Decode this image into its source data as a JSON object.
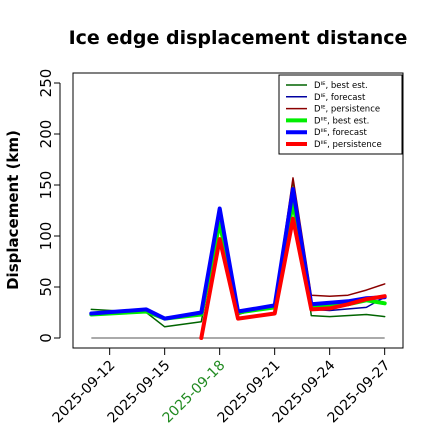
{
  "chart_data": {
    "type": "line",
    "title": "Ice edge displacement distance",
    "ylabel": "Displacement (km)",
    "xlabel": "",
    "ylim": [
      0,
      260
    ],
    "yticks": [
      0,
      50,
      100,
      150,
      200,
      250
    ],
    "xlim": [
      "2025-09-10",
      "2025-09-28"
    ],
    "xticks": [
      {
        "date": "2025-09-12",
        "label": "2025-09-12",
        "color": "#000000"
      },
      {
        "date": "2025-09-15",
        "label": "2025-09-15",
        "color": "#000000"
      },
      {
        "date": "2025-09-18",
        "label": "2025-09-18",
        "color": "#228B22"
      },
      {
        "date": "2025-09-21",
        "label": "2025-09-21",
        "color": "#000000"
      },
      {
        "date": "2025-09-24",
        "label": "2025-09-24",
        "color": "#000000"
      },
      {
        "date": "2025-09-27",
        "label": "2025-09-27",
        "color": "#000000"
      }
    ],
    "legend_position": "top-right",
    "reference_line": {
      "start": "2025-09-11",
      "end": "2025-09-27",
      "y": 0,
      "color": "#555555"
    },
    "series": [
      {
        "name": "Dᴵᴱ, best est.",
        "color": "#006400",
        "width": 1.5,
        "points": [
          [
            "2025-09-11",
            28
          ],
          [
            "2025-09-14",
            25
          ],
          [
            "2025-09-15",
            11
          ],
          [
            "2025-09-17",
            16
          ],
          [
            "2025-09-18",
            110
          ],
          [
            "2025-09-19",
            25
          ],
          [
            "2025-09-21",
            30
          ],
          [
            "2025-09-22",
            155
          ],
          [
            "2025-09-23",
            22
          ],
          [
            "2025-09-24",
            21
          ],
          [
            "2025-09-26",
            23
          ],
          [
            "2025-09-27",
            21
          ]
        ]
      },
      {
        "name": "Dᴵᴱ, forecast",
        "color": "#0000A0",
        "width": 1.5,
        "points": [
          [
            "2025-09-11",
            24
          ],
          [
            "2025-09-14",
            28
          ],
          [
            "2025-09-15",
            19
          ],
          [
            "2025-09-17",
            25
          ],
          [
            "2025-09-18",
            126
          ],
          [
            "2025-09-19",
            26
          ],
          [
            "2025-09-21",
            32
          ],
          [
            "2025-09-22",
            147
          ],
          [
            "2025-09-23",
            28
          ],
          [
            "2025-09-24",
            27
          ],
          [
            "2025-09-26",
            30
          ],
          [
            "2025-09-27",
            40
          ]
        ]
      },
      {
        "name": "Dᴵᴱ, persistence",
        "color": "#8B0000",
        "width": 1.5,
        "points": [
          [
            "2025-09-18",
            107
          ],
          [
            "2025-09-19",
            23
          ],
          [
            "2025-09-21",
            33
          ],
          [
            "2025-09-22",
            157
          ],
          [
            "2025-09-23",
            42
          ],
          [
            "2025-09-24",
            41
          ],
          [
            "2025-09-25",
            42
          ],
          [
            "2025-09-26",
            47
          ],
          [
            "2025-09-27",
            53
          ]
        ]
      },
      {
        "name": "Dᴵᴵᴱ, best est.",
        "color": "#00EE00",
        "width": 4,
        "points": [
          [
            "2025-09-11",
            23
          ],
          [
            "2025-09-14",
            26
          ],
          [
            "2025-09-15",
            19
          ],
          [
            "2025-09-17",
            23
          ],
          [
            "2025-09-18",
            113
          ],
          [
            "2025-09-19",
            25
          ],
          [
            "2025-09-21",
            30
          ],
          [
            "2025-09-22",
            133
          ],
          [
            "2025-09-23",
            30
          ],
          [
            "2025-09-25",
            33
          ],
          [
            "2025-09-26",
            37
          ],
          [
            "2025-09-27",
            34
          ]
        ]
      },
      {
        "name": "Dᴵᴵᴱ, forecast",
        "color": "#0000FF",
        "width": 4,
        "points": [
          [
            "2025-09-11",
            24
          ],
          [
            "2025-09-14",
            28
          ],
          [
            "2025-09-15",
            19
          ],
          [
            "2025-09-17",
            25
          ],
          [
            "2025-09-18",
            127
          ],
          [
            "2025-09-19",
            26
          ],
          [
            "2025-09-21",
            32
          ],
          [
            "2025-09-22",
            146
          ],
          [
            "2025-09-23",
            33
          ],
          [
            "2025-09-25",
            36
          ],
          [
            "2025-09-26",
            39
          ],
          [
            "2025-09-27",
            40
          ]
        ]
      },
      {
        "name": "Dᴵᴵᴱ, persistence",
        "color": "#FF0000",
        "width": 4,
        "points": [
          [
            "2025-09-17",
            0
          ],
          [
            "2025-09-18",
            97
          ],
          [
            "2025-09-19",
            19
          ],
          [
            "2025-09-21",
            24
          ],
          [
            "2025-09-22",
            117
          ],
          [
            "2025-09-23",
            28
          ],
          [
            "2025-09-24",
            29
          ],
          [
            "2025-09-25",
            33
          ],
          [
            "2025-09-26",
            38
          ],
          [
            "2025-09-27",
            41
          ]
        ]
      }
    ]
  }
}
